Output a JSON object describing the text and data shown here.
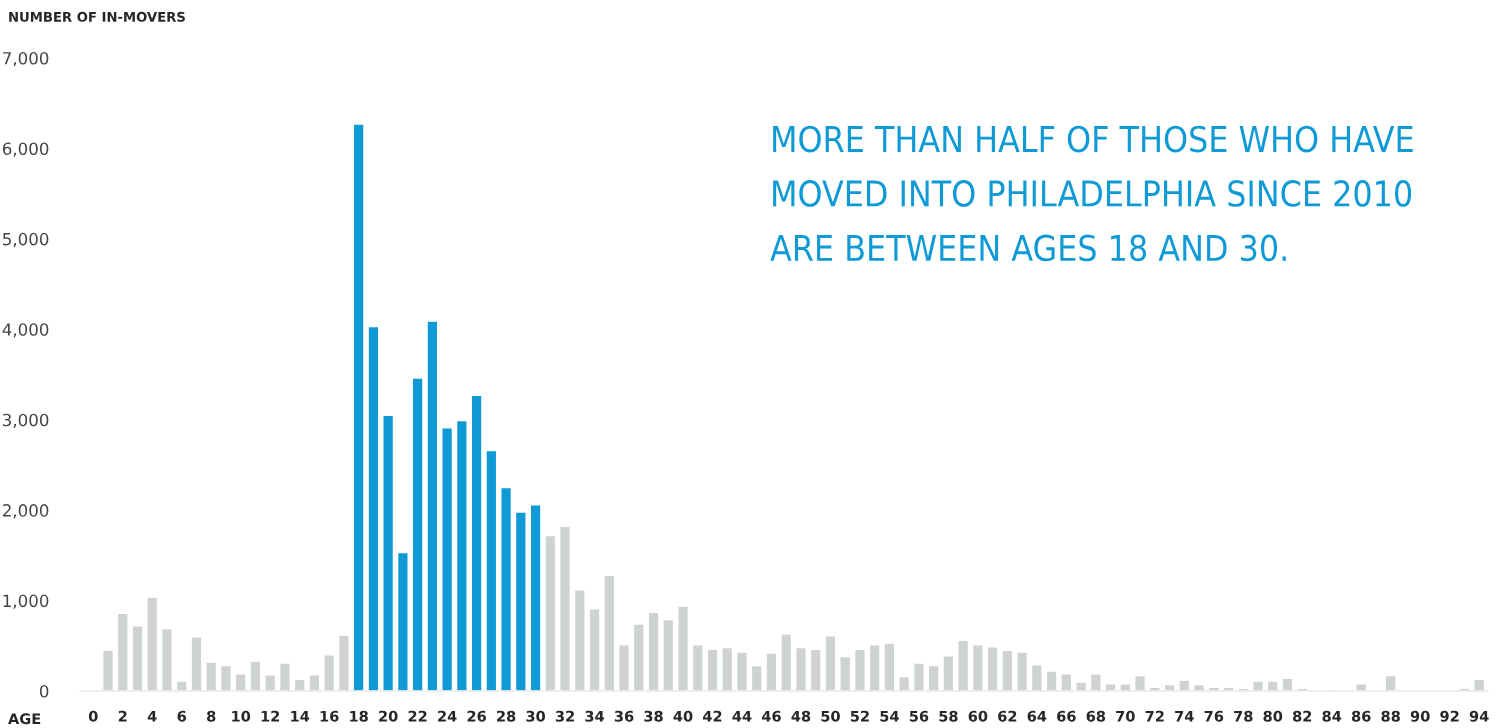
{
  "chart_data": {
    "type": "bar",
    "xlabel": "AGE",
    "ylabel": "NUMBER OF IN-MOVERS",
    "annotations": [
      "MORE THAN HALF OF THOSE WHO HAVE\nMOVED INTO PHILADELPHIA SINCE 2010\nARE BETWEEN AGES 18 AND 30."
    ],
    "categories": [
      "0",
      null,
      "2",
      null,
      "4",
      null,
      "6",
      null,
      "8",
      null,
      "10",
      null,
      "12",
      null,
      "14",
      null,
      "16",
      null,
      "18",
      null,
      "20",
      null,
      "22",
      null,
      "24",
      null,
      "26",
      null,
      "28",
      null,
      "30",
      null,
      "32",
      null,
      "34",
      null,
      "36",
      null,
      "38",
      null,
      "40",
      null,
      "42",
      null,
      "44",
      null,
      "46",
      null,
      "48",
      null,
      "50",
      null,
      "52",
      null,
      "54",
      null,
      "56",
      null,
      "58",
      null,
      "60",
      null,
      "62",
      null,
      "64",
      null,
      "66",
      null,
      "68",
      null,
      "70",
      null,
      "72",
      null,
      "74",
      null,
      "76",
      null,
      "78",
      null,
      "80",
      null,
      "82",
      null,
      "84",
      null,
      "86",
      null,
      "88",
      null,
      "90",
      null,
      "92",
      null,
      "94"
    ],
    "values": [
      10,
      450,
      860,
      720,
      1040,
      690,
      110,
      600,
      320,
      280,
      190,
      330,
      180,
      310,
      130,
      180,
      400,
      620,
      6270,
      4030,
      3050,
      1530,
      3460,
      4090,
      2910,
      2990,
      3270,
      2660,
      2250,
      1980,
      2060,
      1720,
      1820,
      1120,
      910,
      1280,
      510,
      740,
      870,
      790,
      940,
      510,
      460,
      480,
      430,
      280,
      420,
      630,
      480,
      460,
      610,
      380,
      460,
      510,
      530,
      160,
      310,
      280,
      390,
      560,
      510,
      490,
      450,
      430,
      290,
      220,
      190,
      100,
      190,
      80,
      80,
      170,
      40,
      70,
      120,
      70,
      40,
      40,
      30,
      110,
      110,
      140,
      30,
      null,
      20,
      null,
      80,
      20,
      170,
      null,
      null,
      null,
      null,
      30,
      130
    ],
    "colors": [
      "#cfd2d3",
      "#cfd2d3",
      "#cfd2d3",
      "#cfd2d3",
      "#cfd2d3",
      "#cfd2d3",
      "#cfd2d3",
      "#cfd2d3",
      "#cfd2d3",
      "#cfd2d3",
      "#cfd2d3",
      "#cfd2d3",
      "#cfd2d3",
      "#cfd2d3",
      "#cfd2d3",
      "#cfd2d3",
      "#cfd2d3",
      "#cfd2d3",
      "#0f9ad6",
      "#0f9ad6",
      "#0f9ad6",
      "#0f9ad6",
      "#0f9ad6",
      "#0f9ad6",
      "#0f9ad6",
      "#0f9ad6",
      "#0f9ad6",
      "#0f9ad6",
      "#0f9ad6",
      "#0f9ad6",
      "#0f9ad6",
      "#cfd2d3",
      "#cfd2d3",
      "#cfd2d3",
      "#cfd2d3",
      "#cfd2d3",
      "#cfd2d3",
      "#cfd2d3",
      "#cfd2d3",
      "#cfd2d3",
      "#cfd2d3",
      "#cfd2d3",
      "#cfd2d3",
      "#cfd2d3",
      "#cfd2d3",
      "#cfd2d3",
      "#cfd2d3",
      "#cfd2d3",
      "#cfd2d3",
      "#cfd2d3",
      "#cfd2d3",
      "#cfd2d3",
      "#cfd2d3",
      "#cfd2d3",
      "#cfd2d3",
      "#cfd2d3",
      "#cfd2d3",
      "#cfd2d3",
      "#cfd2d3",
      "#cfd2d3",
      "#cfd2d3",
      "#cfd2d3",
      "#cfd2d3",
      "#cfd2d3",
      "#cfd2d3",
      "#cfd2d3",
      "#cfd2d3",
      "#cfd2d3",
      "#cfd2d3",
      "#cfd2d3",
      "#cfd2d3",
      "#cfd2d3",
      "#cfd2d3",
      "#cfd2d3",
      "#cfd2d3",
      "#cfd2d3",
      "#cfd2d3",
      "#cfd2d3",
      "#cfd2d3",
      "#cfd2d3",
      "#cfd2d3",
      "#cfd2d3",
      "#cfd2d3",
      "#cfd2d3",
      "#cfd2d3",
      "#cfd2d3",
      "#cfd2d3",
      "#cfd2d3",
      "#cfd2d3",
      "#cfd2d3",
      "#cfd2d3",
      "#cfd2d3",
      "#cfd2d3",
      "#cfd2d3",
      "#cfd2d3"
    ],
    "ylim": [
      0,
      7000
    ],
    "yticks": [
      0,
      {
        "value": 1000,
        "label": "1,000"
      },
      {
        "value": 2000,
        "label": "2,000"
      },
      {
        "value": 3000,
        "label": "3,000"
      },
      {
        "value": 4000,
        "label": "4,000"
      },
      {
        "value": 5000,
        "label": "5,000"
      },
      {
        "value": 6000,
        "label": "6,000"
      },
      {
        "value": 7000,
        "label": "7,000"
      }
    ],
    "grid": false
  }
}
